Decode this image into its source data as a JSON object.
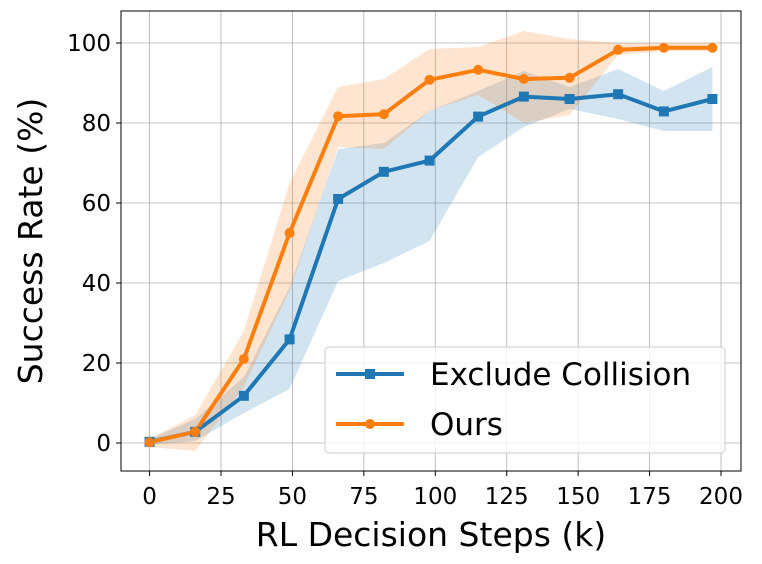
{
  "chart_data": {
    "type": "line",
    "title": "",
    "xlabel": "RL Decision Steps (k)",
    "ylabel": "Success Rate (%)",
    "xlim": [
      -10,
      207
    ],
    "ylim": [
      -7,
      108
    ],
    "xticks": [
      0,
      25,
      50,
      75,
      100,
      125,
      150,
      175,
      200
    ],
    "yticks": [
      0,
      20,
      40,
      60,
      80,
      100
    ],
    "grid": true,
    "legend_position": "lower-right",
    "series": [
      {
        "name": "Exclude Collision",
        "color": "#1f77b4",
        "marker": "square",
        "x": [
          0,
          16,
          33,
          49,
          66,
          82,
          98,
          115,
          131,
          147,
          164,
          180,
          197
        ],
        "y": [
          0.3,
          2.8,
          11.8,
          25.9,
          61.0,
          67.8,
          70.6,
          81.6,
          86.6,
          86.0,
          87.2,
          82.9,
          86.0
        ],
        "lower": [
          -0.5,
          0.5,
          7.5,
          13.5,
          40.5,
          45.0,
          50.5,
          71.5,
          79.0,
          83.5,
          81.0,
          78.0,
          78.0
        ],
        "upper": [
          1.0,
          6.0,
          16.5,
          39.0,
          73.5,
          75.0,
          83.0,
          88.0,
          93.0,
          89.0,
          93.5,
          88.0,
          94.0
        ]
      },
      {
        "name": "Ours",
        "color": "#ff7f0e",
        "marker": "circle",
        "x": [
          0,
          16,
          33,
          49,
          66,
          82,
          98,
          115,
          131,
          147,
          164,
          180,
          197
        ],
        "y": [
          0.2,
          2.8,
          21.0,
          52.5,
          81.7,
          82.2,
          90.8,
          93.3,
          91.0,
          91.3,
          98.3,
          98.8,
          98.8
        ],
        "lower": [
          -1.0,
          -2.0,
          14.0,
          38.0,
          74.0,
          73.5,
          83.0,
          87.0,
          80.0,
          82.0,
          97.0,
          98.0,
          98.0
        ],
        "upper": [
          1.0,
          7.0,
          28.0,
          65.0,
          89.0,
          91.0,
          98.5,
          99.0,
          103.0,
          101.0,
          100.0,
          100.0,
          100.0
        ]
      }
    ]
  }
}
